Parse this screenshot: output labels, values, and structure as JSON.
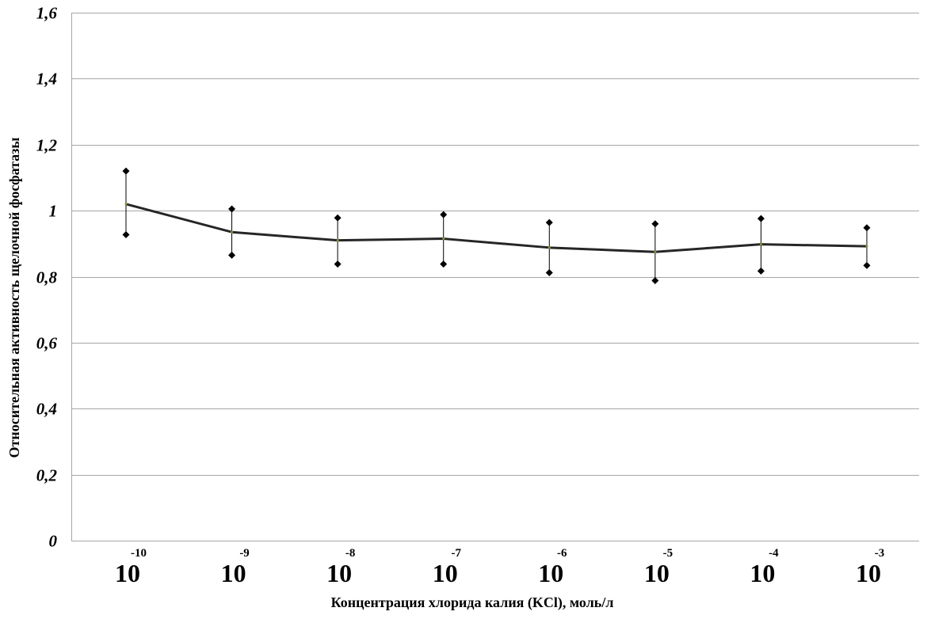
{
  "chart_data": {
    "type": "line",
    "xlabel": "Концентрация хлорида калия (KCl), моль/л",
    "ylabel": "Относительная активность щелочной фосфатазы",
    "ylim": [
      0,
      1.6
    ],
    "yticks": [
      "0",
      "0,2",
      "0,4",
      "0,6",
      "0,8",
      "1",
      "1,2",
      "1,4",
      "1,6"
    ],
    "grid": true,
    "categories": [
      {
        "base": "10",
        "exp": "-10"
      },
      {
        "base": "10",
        "exp": "-9"
      },
      {
        "base": "10",
        "exp": "-8"
      },
      {
        "base": "10",
        "exp": "-7"
      },
      {
        "base": "10",
        "exp": "-6"
      },
      {
        "base": "10",
        "exp": "-5"
      },
      {
        "base": "10",
        "exp": "-4"
      },
      {
        "base": "10",
        "exp": "-3"
      }
    ],
    "series": [
      {
        "values": [
          1.02,
          0.935,
          0.91,
          0.915,
          0.888,
          0.875,
          0.898,
          0.892
        ],
        "error_high": [
          1.12,
          1.005,
          0.978,
          0.988,
          0.964,
          0.96,
          0.976,
          0.948
        ],
        "error_low": [
          0.927,
          0.865,
          0.838,
          0.838,
          0.812,
          0.788,
          0.817,
          0.834
        ]
      }
    ],
    "colors": {
      "line": "#262626",
      "marker": "#000000",
      "grid": "#a6a6a6"
    }
  }
}
